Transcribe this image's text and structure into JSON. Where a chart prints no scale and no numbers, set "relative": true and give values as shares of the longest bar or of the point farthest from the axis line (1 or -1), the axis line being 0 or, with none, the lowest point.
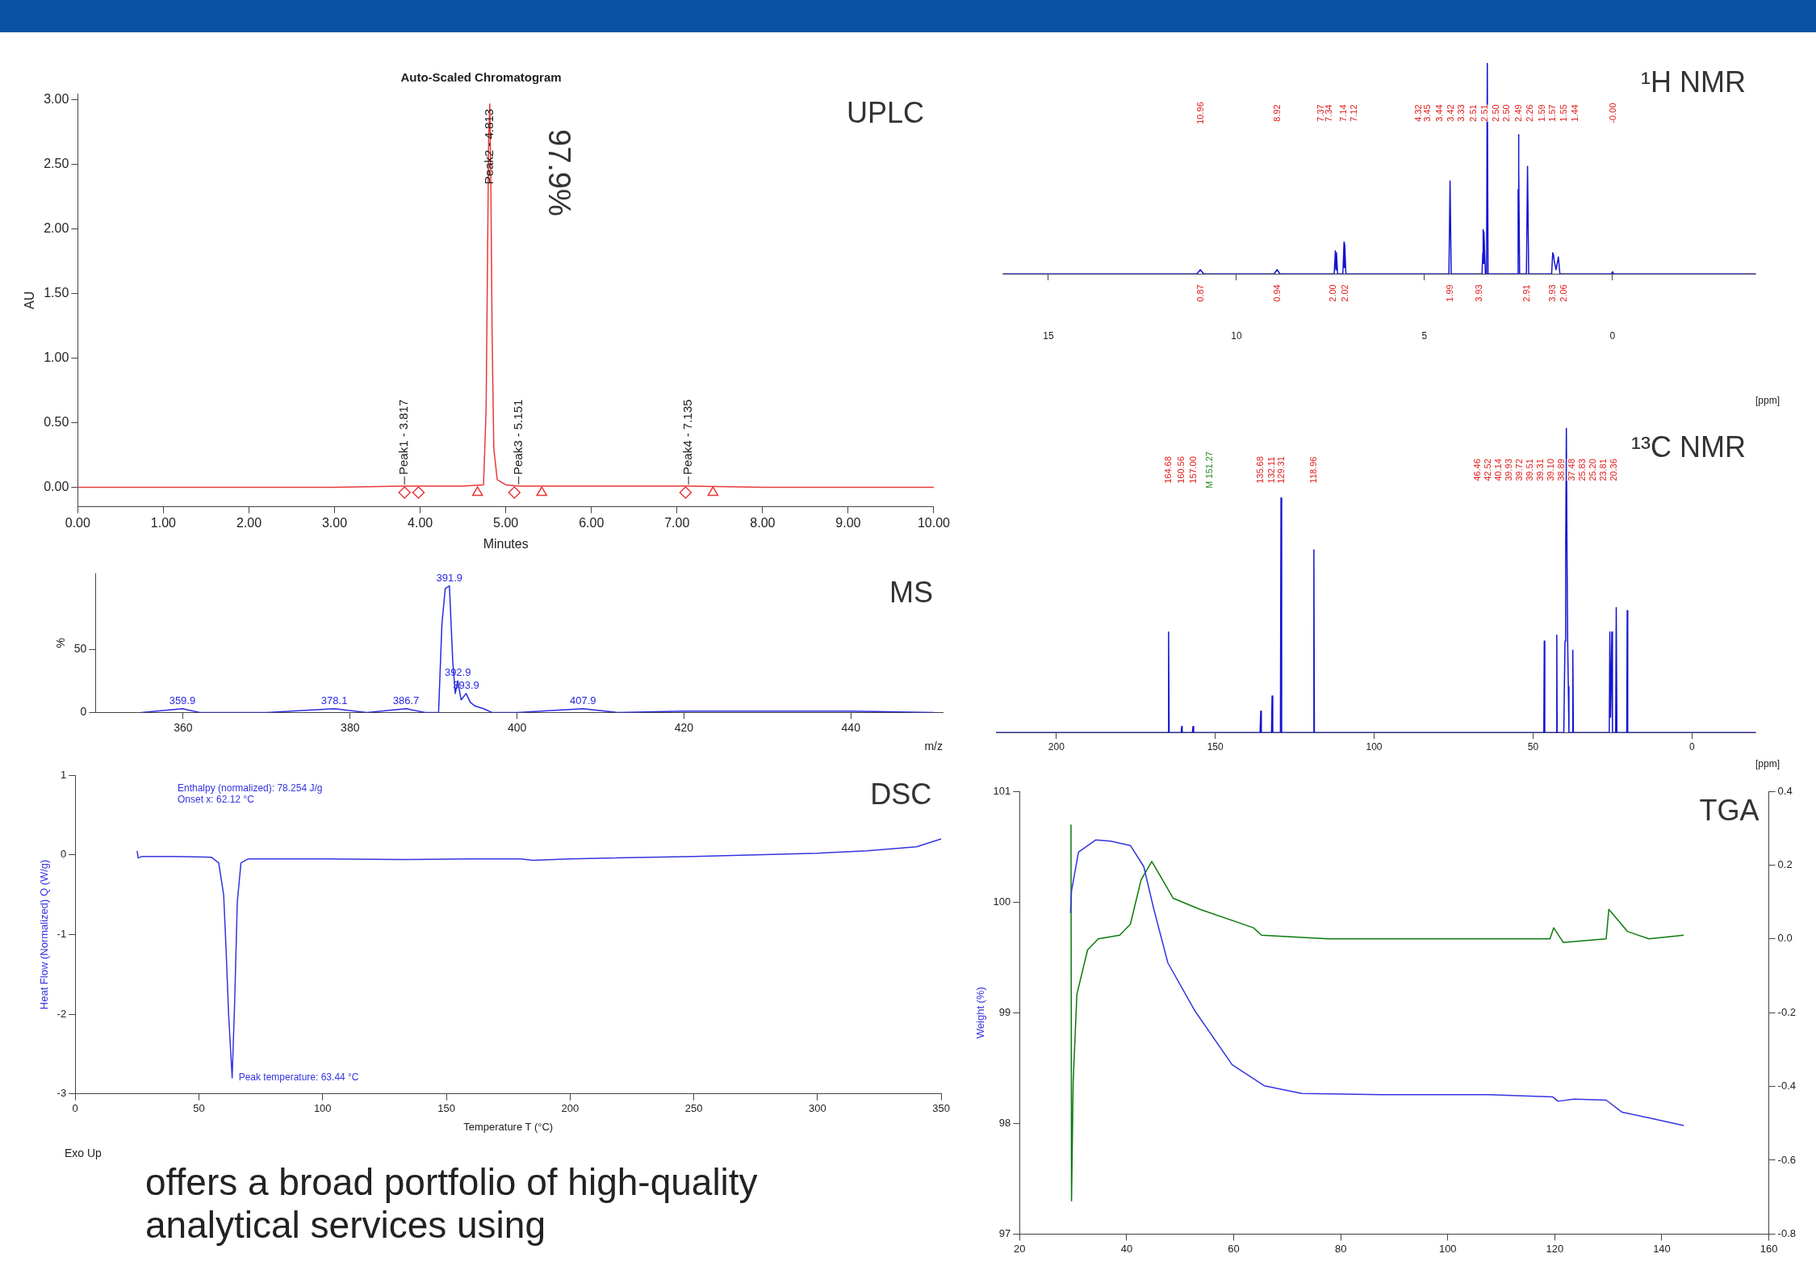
{
  "chart_data": [
    {
      "type": "line",
      "title": "UPLC",
      "subtitle": "Auto-Scaled Chromatogram",
      "xlabel": "Minutes",
      "ylabel": "AU",
      "xlim": [
        0,
        10
      ],
      "ylim": [
        -0.15,
        3.05
      ],
      "xticks": [
        {
          "value": 0,
          "label": "0.00"
        },
        {
          "value": 1,
          "label": "1.00"
        },
        {
          "value": 2,
          "label": "2.00"
        },
        {
          "value": 3,
          "label": "3.00"
        },
        {
          "value": 4,
          "label": "4.00"
        },
        {
          "value": 5,
          "label": "5.00"
        },
        {
          "value": 6,
          "label": "6.00"
        },
        {
          "value": 7,
          "label": "7.00"
        },
        {
          "value": 8,
          "label": "8.00"
        },
        {
          "value": 9,
          "label": "9.00"
        },
        {
          "value": 10,
          "label": "10.00"
        }
      ],
      "yticks": [
        {
          "value": 0,
          "label": "0.00"
        },
        {
          "value": 0.5,
          "label": "0.50"
        },
        {
          "value": 1,
          "label": "1.00"
        },
        {
          "value": 1.5,
          "label": "1.50"
        },
        {
          "value": 2,
          "label": "2.00"
        },
        {
          "value": 2.5,
          "label": "2.50"
        },
        {
          "value": 3,
          "label": "3.00"
        }
      ],
      "series": [
        {
          "type": "line",
          "color": "#e8393a",
          "x": [
            0,
            1,
            2,
            3,
            3.817,
            4.5,
            4.74,
            4.77,
            4.79,
            4.8,
            4.813,
            4.825,
            4.84,
            4.86,
            4.9,
            5,
            5.151,
            6,
            7.135,
            8,
            9,
            10
          ],
          "values": [
            0,
            0,
            0,
            0,
            0.01,
            0.01,
            0.02,
            0.6,
            2,
            2.7,
            2.97,
            2.4,
            1.2,
            0.3,
            0.06,
            0.02,
            0.01,
            0.01,
            0.01,
            0,
            0,
            0
          ]
        },
        {
          "type": "scatter",
          "marker": "diamond",
          "color": "#e8393a",
          "x": [
            3.817,
            3.98,
            5.1,
            7.1
          ],
          "values": [
            -0.04,
            -0.04,
            -0.04,
            -0.04
          ]
        },
        {
          "type": "scatter",
          "marker": "triangle",
          "color": "#e8393a",
          "x": [
            4.67,
            5.42,
            7.42
          ],
          "values": [
            -0.04,
            -0.04,
            -0.04
          ]
        }
      ],
      "annotations": [
        {
          "text": "Peak1 - 3.817",
          "x": 3.817,
          "y": 0.01
        },
        {
          "text": "Peak2 - 4.813",
          "x": 4.813,
          "y": 2.97
        },
        {
          "text": "Peak3 - 5.151",
          "x": 5.151,
          "y": 0.01
        },
        {
          "text": "Peak4 - 7.135",
          "x": 7.135,
          "y": 0.01
        },
        "97.9%"
      ]
    },
    {
      "type": "line",
      "title": "MS",
      "xlabel": "m/z",
      "ylabel": "%",
      "xlim": [
        349.5,
        451
      ],
      "ylim": [
        0,
        110
      ],
      "xticks": [
        360,
        380,
        400,
        420,
        440
      ],
      "yticks": [
        0,
        50
      ],
      "series": [
        {
          "type": "line",
          "color": "#2a2ae0",
          "x": [
            355,
            359.9,
            362,
            370,
            378.1,
            382,
            386.7,
            389,
            390.6,
            391,
            391.4,
            391.9,
            392.3,
            392.6,
            392.9,
            393.3,
            393.9,
            394.4,
            395,
            396,
            397,
            400,
            407.9,
            412,
            420,
            430,
            440,
            450
          ],
          "values": [
            0,
            3,
            0,
            0,
            3,
            0,
            3,
            0,
            0,
            70,
            98,
            100,
            40,
            15,
            25,
            10,
            15,
            8,
            5,
            3,
            0,
            0,
            3,
            0,
            1,
            1,
            1,
            0
          ]
        }
      ],
      "annotations": [
        {
          "text": "359.9",
          "x": 359.9,
          "y": 3
        },
        {
          "text": "378.1",
          "x": 378.1,
          "y": 3
        },
        {
          "text": "386.7",
          "x": 386.7,
          "y": 3
        },
        {
          "text": "391.9",
          "x": 391.9,
          "y": 100
        },
        {
          "text": "392.9",
          "x": 392.9,
          "y": 25
        },
        {
          "text": "393.9",
          "x": 393.9,
          "y": 15
        },
        {
          "text": "407.9",
          "x": 407.9,
          "y": 3
        }
      ]
    },
    {
      "type": "line",
      "title": "DSC",
      "xlabel": "Temperature T (°C)",
      "ylabel": "Heat Flow (Normalized) Q (W/g)",
      "xlim": [
        0,
        350
      ],
      "ylim": [
        -3,
        1
      ],
      "xticks": [
        0,
        50,
        100,
        150,
        200,
        250,
        300,
        350
      ],
      "yticks": [
        -3,
        -2,
        -1,
        0,
        1
      ],
      "series": [
        {
          "type": "line",
          "color": "#3434e0",
          "x": [
            25,
            25.5,
            27,
            30,
            40,
            55,
            58,
            60,
            61,
            62,
            63.44,
            64.5,
            65.5,
            67,
            70,
            100,
            130,
            160,
            180,
            185,
            200,
            250,
            300,
            320,
            340,
            350
          ],
          "values": [
            0.05,
            -0.04,
            -0.02,
            -0.02,
            -0.02,
            -0.03,
            -0.1,
            -0.5,
            -1.2,
            -2,
            -2.8,
            -1.8,
            -0.6,
            -0.1,
            -0.05,
            -0.05,
            -0.06,
            -0.05,
            -0.05,
            -0.07,
            -0.05,
            -0.02,
            0.02,
            0.05,
            0.1,
            0.2
          ]
        }
      ],
      "annotations": [
        "Enthalpy (normalized): 78.254 J/g",
        "Onset x: 62.12 °C",
        {
          "text": "Peak temperature: 63.44 °C",
          "x": 63.44,
          "y": -2.8
        },
        "Exo Up",
        "offers a broad portfolio of high-quality analytical services using"
      ]
    },
    {
      "type": "line",
      "title": "¹H NMR",
      "xlabel": "[ppm]",
      "relative": true,
      "xlim": [
        16.2,
        -3.8
      ],
      "xticks": [
        15,
        10,
        5,
        0
      ],
      "series": [
        {
          "type": "line",
          "color": "#1414d2",
          "x": [
            16.2,
            11.05,
            10.96,
            10.87,
            9,
            8.92,
            8.84,
            7.4,
            7.37,
            7.355,
            7.34,
            7.31,
            7.17,
            7.14,
            7.13,
            7.12,
            7.09,
            4.35,
            4.32,
            4.29,
            3.47,
            3.45,
            3.44,
            3.43,
            3.42,
            3.38,
            3.35,
            3.33,
            3.31,
            2.53,
            2.51,
            2.505,
            2.5,
            2.49,
            2.47,
            2.29,
            2.26,
            2.23,
            1.62,
            1.59,
            1.57,
            1.55,
            1.5,
            1.44,
            1.4,
            0.03,
            0,
            -0.03,
            -3.8
          ],
          "values": [
            0,
            0,
            0.02,
            0,
            0,
            0.02,
            0,
            0,
            0.11,
            0.02,
            0.1,
            0,
            0,
            0.15,
            0.03,
            0.14,
            0,
            0,
            0.44,
            0,
            0,
            0.1,
            0.21,
            0.05,
            0.2,
            0,
            0,
            1,
            0,
            0,
            0.4,
            0.1,
            0.66,
            0.5,
            0,
            0,
            0.51,
            0,
            0,
            0.1,
            0.09,
            0.06,
            0.02,
            0.08,
            0,
            0,
            0.01,
            0,
            0
          ]
        }
      ],
      "annotations": [
        "10.96",
        "8.92",
        "7.37",
        "7.34",
        "7.14",
        "7.12",
        "4.32",
        "3.45",
        "3.44",
        "3.42",
        "3.33",
        "2.51",
        "2.51",
        "2.50",
        "2.50",
        "2.49",
        "2.26",
        "1.59",
        "1.57",
        "1.55",
        "1.44",
        "-0.00",
        "0.87",
        "0.94",
        "2.00",
        "2.02",
        "1.99",
        "3.93",
        "2.91",
        "3.93",
        "2.06"
      ]
    },
    {
      "type": "line",
      "title": "¹³C NMR",
      "xlabel": "[ppm]",
      "relative": true,
      "xlim": [
        219,
        -20
      ],
      "xticks": [
        200,
        150,
        100,
        50,
        0
      ],
      "series": [
        {
          "type": "line",
          "color": "#1414d2",
          "x": [
            219,
            164.9,
            164.68,
            164.5,
            160.7,
            160.56,
            160.4,
            157.2,
            157,
            156.8,
            135.9,
            135.68,
            135.5,
            132.3,
            132.11,
            131.9,
            129.5,
            129.31,
            129.1,
            119.1,
            118.96,
            118.8,
            46.6,
            46.46,
            46.3,
            42.7,
            42.52,
            42.4,
            40.3,
            40.14,
            39.93,
            39.72,
            39.51,
            39.31,
            39.1,
            38.89,
            38.7,
            37.6,
            37.48,
            37.3,
            26,
            25.83,
            25.6,
            25.2,
            25,
            24,
            23.81,
            23.6,
            20.5,
            20.36,
            20.2,
            -20
          ],
          "values": [
            0,
            0,
            0.33,
            0,
            0,
            0.02,
            0,
            0,
            0.02,
            0,
            0,
            0.07,
            0,
            0,
            0.12,
            0,
            0,
            0.77,
            0,
            0,
            0.6,
            0,
            0,
            0.3,
            0,
            0,
            0.32,
            0,
            0,
            0.15,
            0.3,
            0.6,
            1,
            0.6,
            0.3,
            0.15,
            0,
            0,
            0.27,
            0,
            0,
            0.33,
            0.05,
            0.33,
            0,
            0,
            0.41,
            0,
            0,
            0.4,
            0,
            0
          ]
        }
      ],
      "annotations": [
        "164.68",
        "160.56",
        "157.00",
        "M 151.27",
        "135.68",
        "132.11",
        "129.31",
        "118.96",
        "46.46",
        "42.52",
        "40.14",
        "39.93",
        "39.72",
        "39.51",
        "39.31",
        "39.10",
        "38.89",
        "37.48",
        "25.83",
        "25.20",
        "23.81",
        "20.36"
      ]
    },
    {
      "type": "line",
      "title": "TGA",
      "ylabel": "Weight (%)",
      "xlim": [
        20,
        160
      ],
      "ylim": [
        97,
        101
      ],
      "y2lim": [
        -0.8,
        0.4
      ],
      "xticks": [
        20,
        40,
        60,
        80,
        100,
        120,
        140,
        160
      ],
      "yticks": [
        97,
        98,
        99,
        100,
        101
      ],
      "y2ticks": [
        -0.8,
        -0.6,
        -0.4,
        -0.2,
        {
          "value": 0,
          "label": "0.0"
        },
        0.2,
        0.4
      ],
      "series": [
        {
          "type": "line",
          "color": "#3434e0",
          "x": [
            29.5,
            29.7,
            31,
            34.2,
            37,
            40.7,
            43.2,
            45,
            47.7,
            52.7,
            59.7,
            65.7,
            72.7,
            87.6,
            107.6,
            119.6,
            120.6,
            123.6,
            129.6,
            132.6,
            137.6,
            144.1
          ],
          "values": [
            99.9,
            100.1,
            100.45,
            100.56,
            100.55,
            100.51,
            100.32,
            99.95,
            99.45,
            99.02,
            98.53,
            98.34,
            98.27,
            98.26,
            98.26,
            98.24,
            98.2,
            98.22,
            98.21,
            98.1,
            98.05,
            97.98
          ]
        },
        {
          "type": "line",
          "axis": "y2",
          "color": "#0b7a0b",
          "x": [
            29.6,
            29.7,
            30,
            30.7,
            32.7,
            34.7,
            38.7,
            40.7,
            42.7,
            44.7,
            46.7,
            48.7,
            53.7,
            63.7,
            65.2,
            77.6,
            97.6,
            119.1,
            119.8,
            121.6,
            129.6,
            130.1,
            133.6,
            137.6,
            144.1
          ],
          "values": [
            0.31,
            -0.71,
            -0.39,
            -0.15,
            -0.03,
            0,
            0.01,
            0.04,
            0.16,
            0.21,
            0.16,
            0.11,
            0.08,
            0.03,
            0.01,
            0,
            0,
            0,
            0.03,
            -0.01,
            0,
            0.08,
            0.02,
            0,
            0.01
          ]
        }
      ]
    }
  ]
}
